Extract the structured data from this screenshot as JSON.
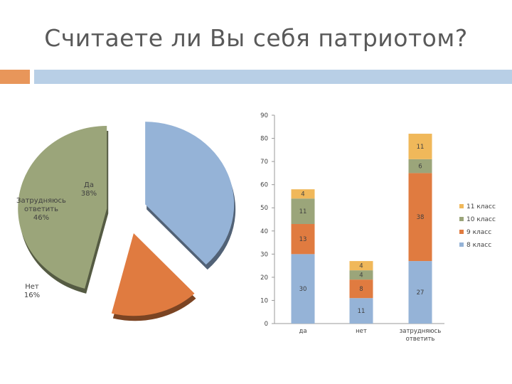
{
  "slide": {
    "title": "Считаете ли Вы себя патриотом?",
    "accent_colors": {
      "orange": "#e8965a",
      "blue": "#b8cfe6"
    }
  },
  "chart_data": [
    {
      "type": "pie",
      "slices": [
        {
          "label": "Да",
          "value": 38,
          "display": "38%",
          "color": "#95b3d7"
        },
        {
          "label": "Нет",
          "value": 16,
          "display": "16%",
          "color": "#e07b40"
        },
        {
          "label": "Затрудняюсь ответить",
          "value": 46,
          "display": "46%",
          "color": "#9ba57a"
        }
      ],
      "exploded": true,
      "style": "3d"
    },
    {
      "type": "bar",
      "stacked": true,
      "categories": [
        "да",
        "нет",
        "затрудняюсь ответить"
      ],
      "series": [
        {
          "name": "8 класс",
          "color": "#95b3d7",
          "values": [
            30,
            11,
            27
          ]
        },
        {
          "name": "9 класс",
          "color": "#e07b40",
          "values": [
            13,
            8,
            38
          ]
        },
        {
          "name": "10 класс",
          "color": "#9ba57a",
          "values": [
            11,
            4,
            6
          ]
        },
        {
          "name": "11 класс",
          "color": "#f0b85a",
          "values": [
            4,
            4,
            11
          ]
        }
      ],
      "ylim": [
        0,
        90
      ],
      "yticks": [
        0,
        10,
        20,
        30,
        40,
        50,
        60,
        70,
        80,
        90
      ],
      "grid": false,
      "legend_position": "right"
    }
  ]
}
